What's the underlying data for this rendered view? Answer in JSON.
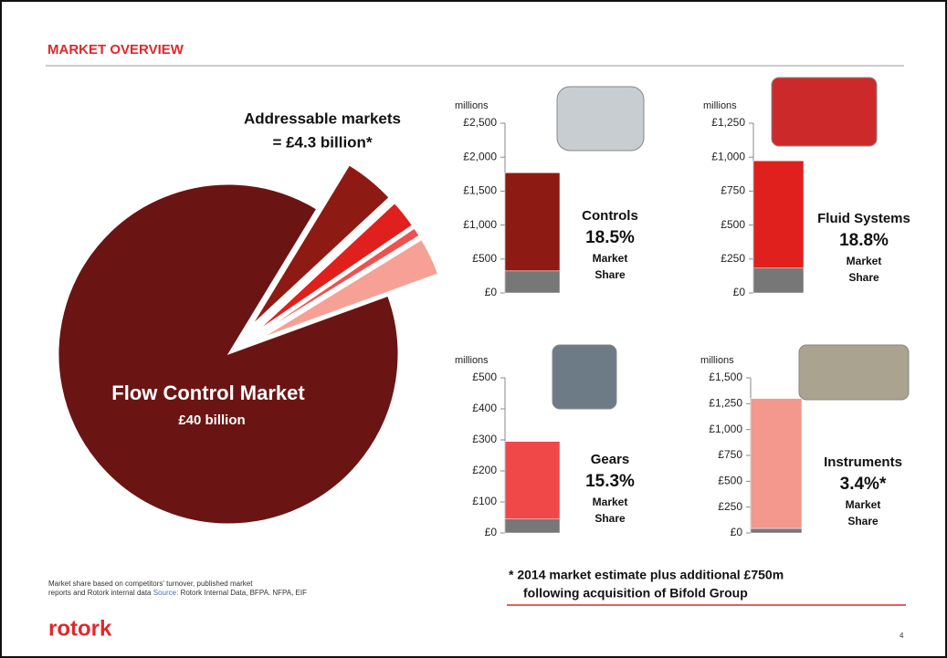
{
  "header": {
    "title": "MARKET OVERVIEW"
  },
  "chart_data": [
    {
      "type": "pie",
      "annotations": [
        "Addressable markets",
        "= £4.3 billion*",
        "£40 billion"
      ],
      "categories": [
        "Flow Control Market",
        null,
        null,
        null,
        null
      ],
      "values": [
        35700,
        1750,
        960,
        300,
        1290
      ],
      "colors": [
        "#6b1414",
        "#8e1b13",
        "#e0201c",
        "#f05050",
        "#f6a096"
      ],
      "explode": [
        false,
        true,
        true,
        true,
        true
      ]
    },
    {
      "type": "bar",
      "title": "Controls",
      "share": "18.5%",
      "note": [
        "Market",
        "Share"
      ],
      "ylabel": "millions",
      "series": [
        {
          "color": "#777777",
          "values": [
            325
          ]
        },
        {
          "color": "#8e1b13",
          "values": [
            1445
          ]
        }
      ],
      "ylim": [
        0,
        2500
      ],
      "yticks": [
        {
          "value": 0,
          "label": "£0"
        },
        {
          "value": 500,
          "label": "£500"
        },
        {
          "value": 1000,
          "label": "£1,000"
        },
        {
          "value": 1500,
          "label": "£1,500"
        },
        {
          "value": 2000,
          "label": "£2,000"
        },
        {
          "value": 2500,
          "label": "£2,500"
        }
      ]
    },
    {
      "type": "bar",
      "title": "Fluid Systems",
      "share": "18.8%",
      "note": [
        "Market",
        "Share"
      ],
      "ylabel": "millions",
      "series": [
        {
          "color": "#777777",
          "values": [
            183
          ]
        },
        {
          "color": "#e0201c",
          "values": [
            790
          ]
        }
      ],
      "ylim": [
        0,
        1250
      ],
      "yticks": [
        {
          "value": 0,
          "label": "£0"
        },
        {
          "value": 250,
          "label": "£250"
        },
        {
          "value": 500,
          "label": "£500"
        },
        {
          "value": 750,
          "label": "£750"
        },
        {
          "value": 1000,
          "label": "£1,000"
        },
        {
          "value": 1250,
          "label": "£1,250"
        }
      ]
    },
    {
      "type": "bar",
      "title": "Gears",
      "share": "15.3%",
      "note": [
        "Market",
        "Share"
      ],
      "ylabel": "millions",
      "series": [
        {
          "color": "#777777",
          "values": [
            45
          ]
        },
        {
          "color": "#f04848",
          "values": [
            250
          ]
        }
      ],
      "ylim": [
        0,
        500
      ],
      "yticks": [
        {
          "value": 0,
          "label": "£0"
        },
        {
          "value": 100,
          "label": "£100"
        },
        {
          "value": 200,
          "label": "£200"
        },
        {
          "value": 300,
          "label": "£300"
        },
        {
          "value": 400,
          "label": "£400"
        },
        {
          "value": 500,
          "label": "£500"
        }
      ]
    },
    {
      "type": "bar",
      "title": "Instruments",
      "share": "3.4%*",
      "note": [
        "Market",
        "Share"
      ],
      "ylabel": "millions",
      "series": [
        {
          "color": "#777777",
          "values": [
            44
          ]
        },
        {
          "color": "#f4978c",
          "values": [
            1256
          ]
        }
      ],
      "ylim": [
        0,
        1500
      ],
      "yticks": [
        {
          "value": 0,
          "label": "£0"
        },
        {
          "value": 250,
          "label": "£250"
        },
        {
          "value": 500,
          "label": "£500"
        },
        {
          "value": 750,
          "label": "£750"
        },
        {
          "value": 1000,
          "label": "£1,000"
        },
        {
          "value": 1250,
          "label": "£1,250"
        },
        {
          "value": 1500,
          "label": "£1,500"
        }
      ]
    }
  ],
  "footnote": {
    "lines": [
      "* 2014 market estimate plus additional £750m",
      "following acquisition of Bifold Group"
    ]
  },
  "source": {
    "text": [
      "Market share based on competitors' turnover, published market",
      "reports and Rotork internal data"
    ],
    "label": "Source:",
    "detail": "Rotork Internal Data, BFPA. NFPA, EIF"
  },
  "footer": {
    "logo": "rotork",
    "page": "4"
  }
}
